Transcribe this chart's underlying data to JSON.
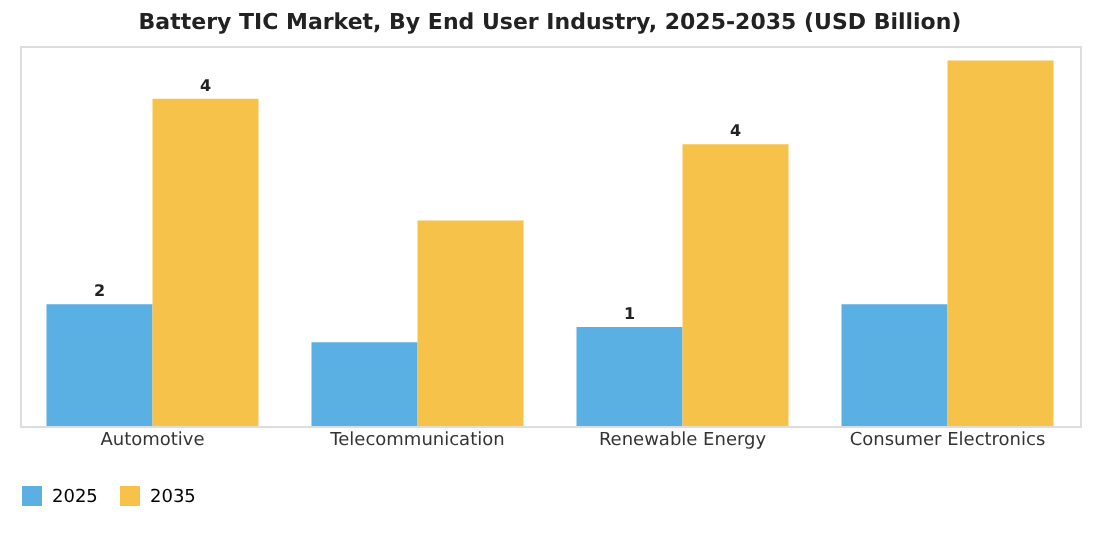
{
  "chart_data": {
    "type": "bar",
    "title": "Battery TIC Market, By End User Industry, 2025-2035 (USD Billion)",
    "categories": [
      "Automotive",
      "Telecommunication",
      "Renewable Energy",
      "Consumer Electronics"
    ],
    "series": [
      {
        "name": "2025",
        "color": "#5aafe3",
        "values": [
          1.6,
          1.1,
          1.3,
          1.6
        ],
        "value_labels": [
          "2",
          null,
          "1",
          null
        ]
      },
      {
        "name": "2035",
        "color": "#f7c24a",
        "values": [
          4.3,
          2.7,
          3.7,
          4.8
        ],
        "value_labels": [
          "4",
          null,
          "4",
          null
        ]
      }
    ],
    "legend": "bottom",
    "grid": false
  }
}
